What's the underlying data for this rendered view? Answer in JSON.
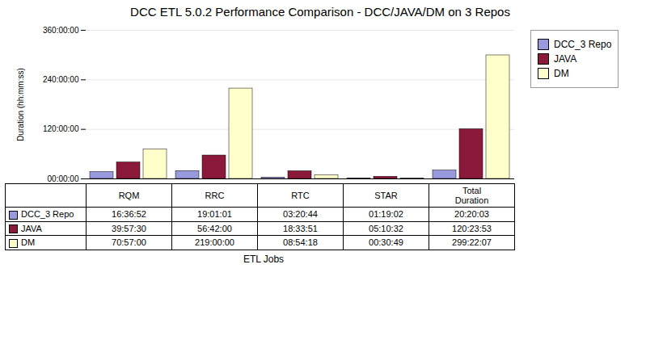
{
  "chart_data": {
    "type": "bar",
    "title": "DCC ETL 5.0.2 Performance Comparison  - DCC/JAVA/DM on 3 Repos",
    "xlabel": "ETL Jobs",
    "ylabel": "Duration (hh:mm:ss)",
    "categories": [
      "RQM",
      "RRC",
      "RTC",
      "STAR",
      "Total\nDuration"
    ],
    "series": [
      {
        "name": "DCC_3 Repo",
        "color": "#9999DD",
        "values": [
          59812,
          68461,
          12044,
          4742,
          73203
        ],
        "value_labels": [
          "16:36:52",
          "19:01:01",
          "03:20:44",
          "01:19:02",
          "20:20:03"
        ]
      },
      {
        "name": "JAVA",
        "color": "#8B1A3A",
        "values": [
          143850,
          204120,
          66831,
          18632,
          433433
        ],
        "value_labels": [
          "39:57:30",
          "56:42:00",
          "18:33:51",
          "05:10:32",
          "120:23:53"
        ]
      },
      {
        "name": "DM",
        "color": "#FFFFCC",
        "values": [
          255420,
          788400,
          32058,
          1849,
          1077727
        ],
        "value_labels": [
          "70:57:00",
          "219:00:00",
          "08:54:18",
          "00:30:49",
          "299:22:07"
        ]
      }
    ],
    "ylim": [
      0,
      1296000
    ],
    "yticks": [
      {
        "value": 0,
        "label": "00:00:00"
      },
      {
        "value": 432000,
        "label": "120:00:00"
      },
      {
        "value": 864000,
        "label": "240:00:00"
      },
      {
        "value": 1296000,
        "label": "360:00:00"
      }
    ],
    "grid": true,
    "legend": "right",
    "data_labels": true
  }
}
